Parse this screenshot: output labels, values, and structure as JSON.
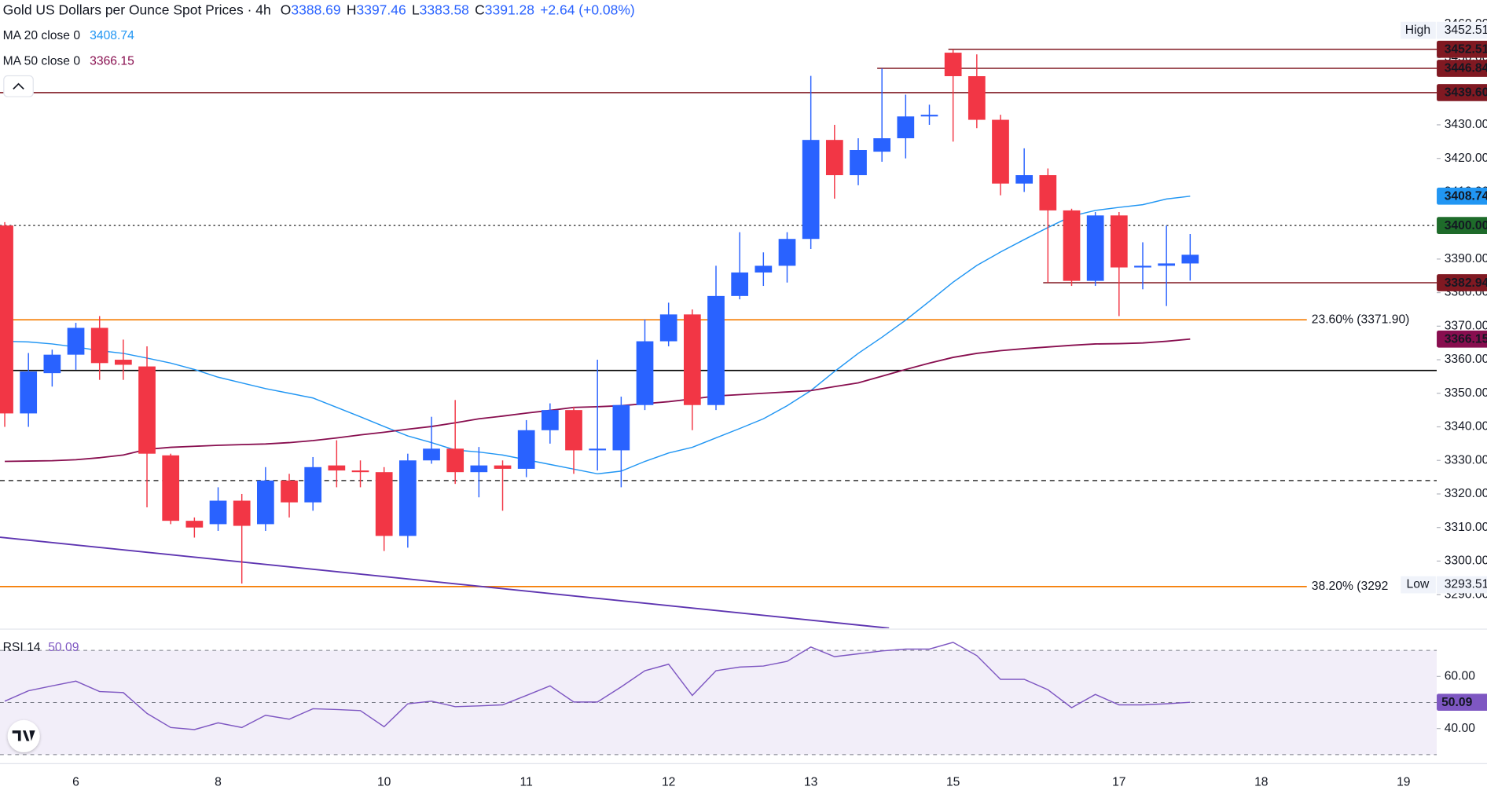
{
  "chart_data": {
    "type": "candlestick",
    "title": "Gold US Dollars per Ounce Spot Prices · 4h",
    "ohlc_legend": [
      {
        "key": "O",
        "value": 3388.69
      },
      {
        "key": "H",
        "value": 3397.46
      },
      {
        "key": "L",
        "value": 3383.58
      },
      {
        "key": "C",
        "value": 3391.28
      }
    ],
    "change": {
      "value": 2.64,
      "label": "+2.64"
    },
    "change_pct": {
      "value": 0.08,
      "label": "(+0.08%)"
    },
    "up_color": "#2962ff",
    "down_color": "#f23645",
    "categories": [
      null,
      null,
      null,
      "6",
      null,
      null,
      null,
      null,
      null,
      "8",
      null,
      null,
      null,
      null,
      null,
      null,
      "10",
      null,
      null,
      null,
      null,
      null,
      "11",
      null,
      null,
      null,
      null,
      null,
      "12",
      null,
      null,
      null,
      null,
      null,
      "13",
      null,
      null,
      null,
      null,
      null,
      "15",
      null,
      null,
      null,
      null,
      null,
      null,
      "17",
      null,
      null,
      null,
      null,
      null,
      "18",
      null,
      null,
      null,
      null,
      null,
      "19"
    ],
    "open": [
      3400,
      3344,
      3356,
      3361.5,
      3369.5,
      3360,
      3358,
      3331.5,
      3312,
      3311,
      3318,
      3311,
      3324,
      3317.5,
      3328.5,
      3327,
      3326.5,
      3307.5,
      3330,
      3333.5,
      3326.5,
      3328.5,
      3327.5,
      3339,
      3345,
      3333,
      3333,
      3346.5,
      3365.5,
      3373.5,
      3346.5,
      3379,
      3386,
      3388,
      3396,
      3425.5,
      3415,
      3422,
      3426,
      3432.5,
      3451.5,
      3444.5,
      3431.5,
      3412.5,
      3415,
      3404.5,
      3383.5,
      3403,
      3387.5,
      3388,
      3388.69,
      null,
      null,
      null,
      null,
      null,
      null,
      null,
      null,
      null
    ],
    "high": [
      3401,
      3362,
      3363,
      3371,
      3373,
      3366,
      3364,
      3332,
      3313,
      3322,
      3320,
      3328,
      3326,
      3331,
      3336,
      3330,
      3328,
      3332,
      3343,
      3348,
      3334,
      3330,
      3342,
      3347,
      3346,
      3360,
      3349,
      3372,
      3377,
      3375,
      3388,
      3398,
      3392,
      3398,
      3444.6,
      3430,
      3426,
      3446.8,
      3439,
      3436,
      3452.5,
      3451,
      3433,
      3423,
      3417,
      3405,
      3404,
      3404,
      3395,
      3400,
      3397.46,
      null,
      null,
      null,
      null,
      null,
      null,
      null,
      null,
      null
    ],
    "low": [
      3340,
      3340,
      3352,
      3357,
      3354,
      3354,
      3316,
      3311,
      3307,
      3309,
      3293.3,
      3309,
      3313,
      3315,
      3322,
      3322,
      3303,
      3304,
      3329,
      3323,
      3319,
      3315,
      3325,
      3335,
      3326,
      3327,
      3322,
      3345,
      3364,
      3339,
      3345,
      3378,
      3382,
      3383,
      3393,
      3408,
      3412,
      3419,
      3420,
      3430,
      3425,
      3429,
      3409,
      3410,
      3383,
      3382,
      3382,
      3373,
      3381,
      3376,
      3383.58,
      null,
      null,
      null,
      null,
      null,
      null,
      null,
      null,
      null
    ],
    "close": [
      3344,
      3356.5,
      3361.5,
      3369.5,
      3359,
      3358.5,
      3332,
      3312,
      3310,
      3318,
      3310.5,
      3324,
      3317.5,
      3328,
      3327,
      3326.5,
      3307.5,
      3330,
      3333.5,
      3326.5,
      3328.5,
      3327.5,
      3339,
      3345,
      3333,
      3333.5,
      3346.5,
      3365.5,
      3373.5,
      3346.5,
      3379,
      3386,
      3388,
      3396,
      3425.5,
      3415,
      3422.5,
      3426,
      3432.5,
      3433,
      3444.5,
      3431.5,
      3412.5,
      3415,
      3404.5,
      3383.5,
      3403,
      3387.5,
      3388,
      3388.7,
      3391.28,
      null,
      null,
      null,
      null,
      null,
      null,
      null,
      null,
      null
    ],
    "indicators": [
      {
        "name": "MA 20 close 0",
        "color": "#2196f3",
        "last": 3408.74,
        "values": [
          3365.5,
          3365.3,
          3364.7,
          3363.8,
          3362.7,
          3361.9,
          3360.5,
          3359.0,
          3357.1,
          3354.8,
          3353.1,
          3351.4,
          3350.0,
          3348.6,
          3345.8,
          3343.0,
          3340.1,
          3337.3,
          3335.3,
          3333.1,
          3332.5,
          3331.6,
          3330.2,
          3328.8,
          3327.4,
          3326.0,
          3326.8,
          3329.7,
          3332.2,
          3333.9,
          3336.7,
          3339.5,
          3342.4,
          3346.3,
          3350.8,
          3356.5,
          3361.9,
          3366.7,
          3371.8,
          3377.4,
          3383.1,
          3388.1,
          3392.1,
          3395.8,
          3399.4,
          3402.8,
          3404.5,
          3405.4,
          3406.2,
          3407.9,
          3408.74,
          null,
          null,
          null,
          null,
          null,
          null,
          null,
          null,
          null
        ]
      },
      {
        "name": "MA 50 close 0",
        "color": "#880e4f",
        "last": 3366.15,
        "values": [
          3329.7,
          3329.8,
          3329.9,
          3330.2,
          3330.8,
          3331.6,
          3333.3,
          3333.9,
          3334.2,
          3334.5,
          3334.7,
          3334.9,
          3335.3,
          3335.9,
          3336.7,
          3337.6,
          3338.4,
          3339.3,
          3340.1,
          3341.2,
          3342.4,
          3343.2,
          3344.1,
          3344.9,
          3345.8,
          3346.0,
          3346.3,
          3346.9,
          3347.5,
          3348.3,
          3349.2,
          3349.6,
          3350.0,
          3350.4,
          3350.8,
          3352.0,
          3353.1,
          3355.1,
          3357.1,
          3359.0,
          3360.7,
          3361.9,
          3362.7,
          3363.3,
          3363.8,
          3364.3,
          3364.7,
          3364.8,
          3365.0,
          3365.5,
          3366.15,
          null,
          null,
          null,
          null,
          null,
          null,
          null,
          null,
          null
        ]
      }
    ],
    "ylim": [
      3280,
      3467.2
    ],
    "yticks": [
      {
        "value": 3290,
        "label": "3290.00"
      },
      {
        "value": 3300,
        "label": "3300.00"
      },
      {
        "value": 3310,
        "label": "3310.00"
      },
      {
        "value": 3320,
        "label": "3320.00"
      },
      {
        "value": 3330,
        "label": "3330.00"
      },
      {
        "value": 3340,
        "label": "3340.00"
      },
      {
        "value": 3350,
        "label": "3350.00"
      },
      {
        "value": 3360,
        "label": "3360.00"
      },
      {
        "value": 3370,
        "label": "3370.00"
      },
      {
        "value": 3380,
        "label": "3380.00"
      },
      {
        "value": 3390,
        "label": "3390.00"
      },
      {
        "value": 3400,
        "label": "3400.00"
      },
      {
        "value": 3410,
        "label": "3410.00"
      },
      {
        "value": 3420,
        "label": "3420.00"
      },
      {
        "value": 3430,
        "label": "3430.00"
      },
      {
        "value": 3440,
        "label": "3440.00"
      },
      {
        "value": 3450,
        "label": "3450.00"
      },
      {
        "value": 3460,
        "label": "3460.00"
      }
    ],
    "levels": [
      {
        "value": 3452.51,
        "start": 40,
        "color": "#801922",
        "style": "solid"
      },
      {
        "value": 3446.84,
        "start": 37,
        "color": "#801922",
        "style": "solid"
      },
      {
        "value": 3439.6,
        "start": 0,
        "color": "#801922",
        "style": "solid"
      },
      {
        "value": 3400,
        "start": 0,
        "color": "#444444",
        "style": "dotted"
      },
      {
        "value": 3382.94,
        "start": 44,
        "color": "#801922",
        "style": "solid"
      },
      {
        "value": 3356.8,
        "start": 0,
        "color": "#000000",
        "style": "solid"
      },
      {
        "value": 3324,
        "start": 0,
        "color": "#333333",
        "style": "dashed"
      }
    ],
    "fibs": [
      {
        "value": 3371.9,
        "label": "23.60% (3371.90)",
        "color": "#f57c00"
      },
      {
        "value": 3292.4,
        "label": "38.20% (3292",
        "color": "#f57c00"
      }
    ],
    "trendline": {
      "color": "#5e35b1",
      "points": [
        [
          -0.2,
          3307.1
        ],
        [
          37.3,
          3280
        ]
      ]
    },
    "price_tags": [
      {
        "value": 3452.51,
        "label": "3452.51",
        "color": "#801922"
      },
      {
        "value": 3446.84,
        "label": "3446.84",
        "color": "#801922"
      },
      {
        "value": 3439.6,
        "label": "3439.60",
        "color": "#801922"
      },
      {
        "value": 3408.74,
        "label": "3408.74",
        "color": "#2196f3"
      },
      {
        "value": 3400,
        "label": "3400.00",
        "color": "#1e6b2a"
      },
      {
        "value": 3382.94,
        "label": "3382.94",
        "color": "#801922"
      },
      {
        "value": 3366.15,
        "label": "3366.15",
        "color": "#880e4f"
      }
    ],
    "extremes": [
      {
        "text": "High",
        "value": 3452.51,
        "label": "3452.51"
      },
      {
        "text": "Low",
        "value": 3293.51,
        "label": "3293.51"
      }
    ],
    "rsi": {
      "name": "RSI 14",
      "color": "#7e57c2",
      "last": 50.09,
      "values": [
        50.5,
        54.5,
        56.4,
        58.2,
        54.2,
        53.8,
        45.8,
        40.4,
        39.6,
        42.2,
        40.4,
        45.1,
        43.6,
        47.6,
        47.3,
        46.9,
        40.7,
        49.5,
        50.5,
        48.4,
        48.7,
        49.1,
        52.7,
        56.4,
        50.2,
        50.2,
        56.0,
        62.2,
        64.7,
        52.7,
        62.2,
        63.6,
        64.0,
        65.8,
        71.3,
        67.6,
        68.7,
        69.8,
        70.5,
        70.5,
        73.1,
        68.0,
        58.9,
        58.9,
        54.9,
        48.0,
        53.1,
        49.1,
        49.1,
        49.5,
        50.09,
        null,
        null,
        null,
        null,
        null,
        null,
        null,
        null,
        null
      ],
      "ylim": [
        28.7,
        77.8
      ],
      "yticks": [
        {
          "value": 40,
          "label": "40.00"
        },
        {
          "value": 60,
          "label": "60.00"
        }
      ],
      "bands": [
        30,
        50,
        70
      ]
    }
  }
}
